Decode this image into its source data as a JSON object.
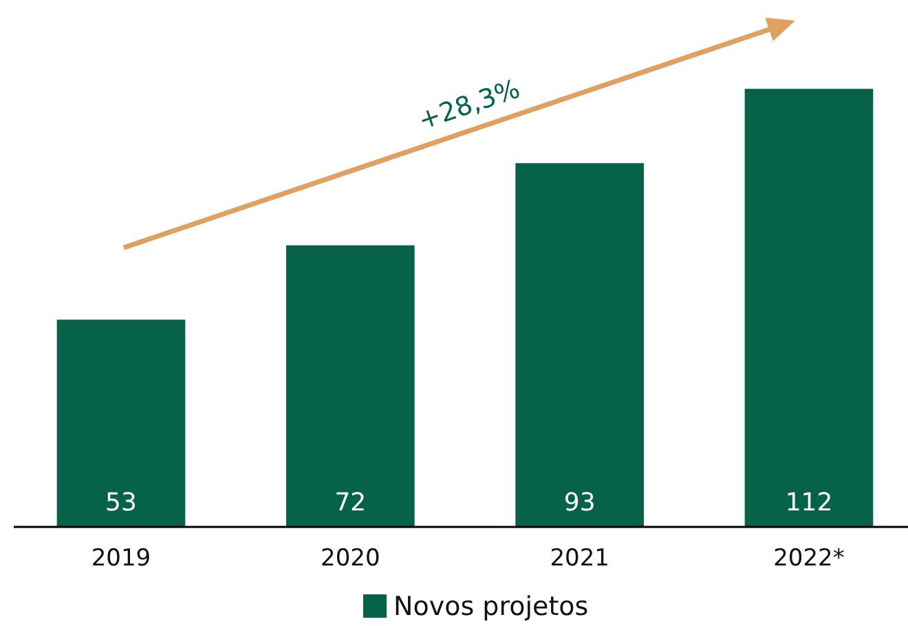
{
  "chart_data": {
    "type": "bar",
    "categories": [
      "2019",
      "2020",
      "2021",
      "2022*"
    ],
    "series": [
      {
        "name": "Novos projetos",
        "color": "#066349",
        "values": [
          53,
          72,
          93,
          112
        ]
      }
    ],
    "data_labels": true,
    "legend": "bottom",
    "annotations": [
      "+28,3%"
    ]
  }
}
